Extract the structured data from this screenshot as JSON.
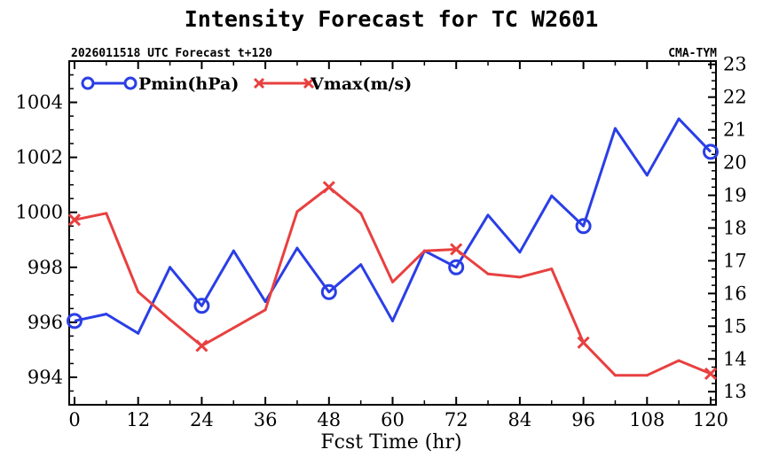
{
  "chart_data": {
    "type": "line",
    "title": "Intensity Forecast for TC W2601",
    "subtitle_left": "2026011518 UTC Forecast t+120",
    "subtitle_right": "CMA-TYM",
    "xlabel": "Fcst Time (hr)",
    "x": [
      0,
      6,
      12,
      18,
      24,
      30,
      36,
      42,
      48,
      54,
      60,
      66,
      72,
      78,
      84,
      90,
      96,
      102,
      108,
      114,
      120
    ],
    "xlim": [
      0,
      120
    ],
    "xticks": [
      "0",
      "12",
      "24",
      "36",
      "48",
      "60",
      "72",
      "84",
      "96",
      "108",
      "120"
    ],
    "y_left": {
      "ylim": [
        993,
        1005.5
      ],
      "ticks": [
        "994",
        "996",
        "998",
        "1000",
        "1002",
        "1004"
      ]
    },
    "y_right": {
      "ylim": [
        12.6,
        23.1
      ],
      "ticks": [
        "13",
        "14",
        "15",
        "16",
        "17",
        "18",
        "19",
        "20",
        "21",
        "22",
        "23"
      ]
    },
    "series": [
      {
        "name": "Pmin(hPa)",
        "axis": "left",
        "color": "#2a3ee6",
        "marker": "circle",
        "marker_at": [
          0,
          24,
          48,
          72,
          96,
          120
        ],
        "values": [
          996.05,
          996.3,
          995.6,
          998.0,
          996.6,
          998.6,
          996.75,
          998.7,
          997.1,
          998.1,
          996.05,
          998.6,
          998.0,
          999.9,
          998.55,
          1000.6,
          999.5,
          1003.05,
          1001.35,
          1003.4,
          1002.2
        ]
      },
      {
        "name": "Vmax(m/s)",
        "axis": "right",
        "color": "#e84040",
        "marker": "x",
        "marker_at": [
          0,
          24,
          48,
          72,
          96,
          120
        ],
        "values": [
          18.25,
          18.45,
          16.05,
          15.2,
          14.4,
          14.95,
          15.5,
          18.5,
          19.25,
          18.45,
          16.35,
          17.3,
          17.35,
          16.6,
          16.5,
          16.75,
          14.5,
          13.5,
          13.5,
          13.95,
          13.55
        ]
      }
    ]
  }
}
